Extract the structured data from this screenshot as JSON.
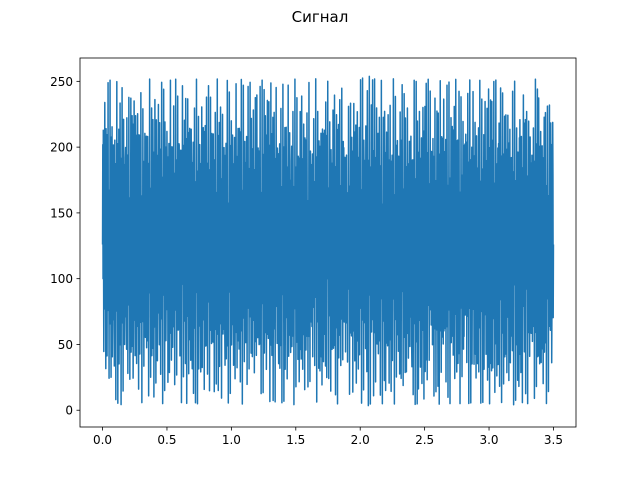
{
  "chart_data": {
    "type": "line",
    "title": "Сигнал",
    "xlabel": "",
    "ylabel": "",
    "xlim": [
      -0.175,
      3.675
    ],
    "ylim": [
      -12.75,
      267.75
    ],
    "x_ticks": [
      0.0,
      0.5,
      1.0,
      1.5,
      2.0,
      2.5,
      3.0,
      3.5
    ],
    "x_tick_labels": [
      "0.0",
      "0.5",
      "1.0",
      "1.5",
      "2.0",
      "2.5",
      "3.0",
      "3.5"
    ],
    "y_ticks": [
      0,
      50,
      100,
      150,
      200,
      250
    ],
    "y_tick_labels": [
      "0",
      "50",
      "100",
      "150",
      "200",
      "250"
    ],
    "grid": false,
    "legend": "none",
    "series": [
      {
        "color": "#1f77b4",
        "description": "dense oscillating 8-bit signal sampled over 0–3.5 s",
        "x": [
          0.0,
          0.05,
          0.1,
          0.15,
          0.2,
          0.25,
          0.3,
          0.35,
          0.4,
          0.45,
          0.5,
          0.55,
          0.6,
          0.65,
          0.7,
          0.75,
          0.8,
          0.85,
          0.9,
          0.95,
          1.0,
          1.05,
          1.1,
          1.15,
          1.2,
          1.25,
          1.3,
          1.35,
          1.4,
          1.45,
          1.5,
          1.55,
          1.6,
          1.65,
          1.7,
          1.75,
          1.8,
          1.85,
          1.9,
          1.95,
          2.0,
          2.05,
          2.1,
          2.15,
          2.2,
          2.25,
          2.3,
          2.35,
          2.4,
          2.45,
          2.5,
          2.55,
          2.6,
          2.65,
          2.7,
          2.75,
          2.8,
          2.85,
          2.9,
          2.95,
          3.0,
          3.05,
          3.1,
          3.15,
          3.2,
          3.25,
          3.3,
          3.35,
          3.4,
          3.45,
          3.5
        ],
        "y_max": [
          237,
          251,
          250,
          249,
          251,
          252,
          250,
          252,
          251,
          249,
          250,
          252,
          251,
          250,
          251,
          252,
          250,
          251,
          252,
          251,
          250,
          252,
          251,
          249,
          254,
          250,
          253,
          252,
          251,
          250,
          252,
          251,
          249,
          252,
          251,
          250,
          246,
          249,
          238,
          250,
          251,
          255,
          252,
          251,
          250,
          252,
          251,
          250,
          252,
          249,
          251,
          252,
          250,
          251,
          249,
          252,
          250,
          251,
          249,
          252,
          250,
          251,
          249,
          252,
          250,
          251,
          249,
          252,
          250,
          251,
          237
        ],
        "y_min": [
          21,
          5,
          6,
          4,
          7,
          5,
          6,
          4,
          6,
          5,
          5,
          4,
          6,
          5,
          7,
          4,
          5,
          6,
          4,
          5,
          6,
          4,
          5,
          7,
          3,
          6,
          5,
          4,
          6,
          5,
          4,
          6,
          5,
          7,
          4,
          6,
          2,
          8,
          10,
          4,
          6,
          3,
          5,
          4,
          6,
          5,
          4,
          6,
          5,
          4,
          6,
          5,
          4,
          6,
          5,
          4,
          6,
          5,
          4,
          6,
          5,
          4,
          6,
          5,
          4,
          6,
          5,
          4,
          6,
          5,
          21
        ]
      }
    ]
  }
}
